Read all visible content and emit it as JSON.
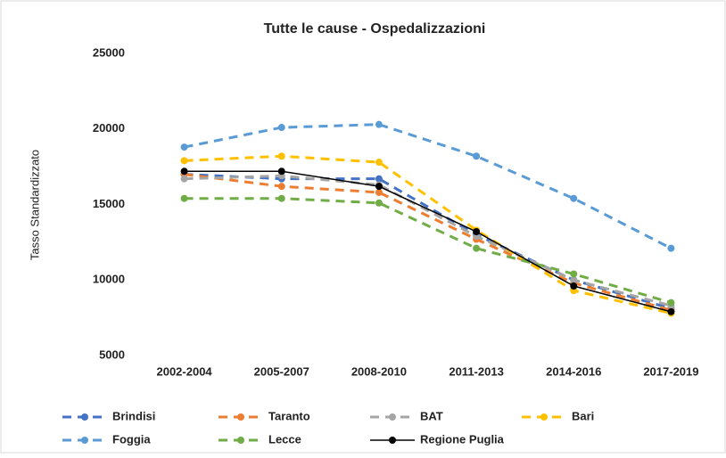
{
  "chart_data": {
    "type": "line",
    "title": "Tutte le cause - Ospedalizzazioni",
    "y_label": "Tasso  Standardizzato",
    "categories": [
      "2002-2004",
      "2005-2007",
      "2008-2010",
      "2011-2013",
      "2014-2016",
      "2017-2019"
    ],
    "series": [
      {
        "name": "Brindisi",
        "color": "#4472c4",
        "dashed": true,
        "values": [
          17000,
          16700,
          16700,
          13000,
          10000,
          8100
        ]
      },
      {
        "name": "Taranto",
        "color": "#ed7d31",
        "dashed": true,
        "values": [
          17000,
          16200,
          15800,
          12700,
          9800,
          8000
        ]
      },
      {
        "name": "BAT",
        "color": "#a5a5a5",
        "dashed": true,
        "values": [
          16700,
          16900,
          16300,
          12900,
          10000,
          8300
        ]
      },
      {
        "name": "Bari",
        "color": "#ffc000",
        "dashed": true,
        "values": [
          17900,
          18200,
          17800,
          13300,
          9300,
          7800
        ]
      },
      {
        "name": "Foggia",
        "color": "#5b9bd5",
        "dashed": true,
        "values": [
          18800,
          20100,
          20300,
          18200,
          15400,
          12100
        ]
      },
      {
        "name": "Lecce",
        "color": "#70ad47",
        "dashed": true,
        "values": [
          15400,
          15400,
          15100,
          12100,
          10400,
          8500
        ]
      },
      {
        "name": "Regione Puglia",
        "color": "#000000",
        "dashed": false,
        "values": [
          17200,
          17200,
          16200,
          13200,
          9600,
          7900
        ]
      }
    ],
    "ylim": [
      5000,
      25000
    ],
    "yticks": [
      5000,
      10000,
      15000,
      20000,
      25000
    ],
    "grid": false,
    "legend": "bottom"
  }
}
